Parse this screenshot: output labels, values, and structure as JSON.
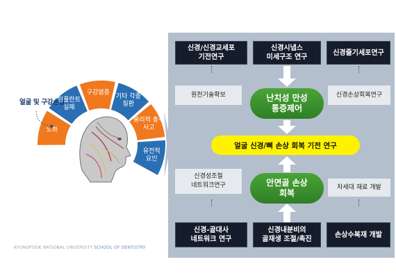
{
  "left_diagram": {
    "caption": "얼굴 및 구강손상",
    "segments": [
      {
        "label": "노화",
        "color": "#f0781e"
      },
      {
        "label": "임플란트\n실패",
        "color": "#2a6fb3"
      },
      {
        "label": "구강염증",
        "color": "#f0781e"
      },
      {
        "label": "기타 각종\n질환",
        "color": "#2a6fb3"
      },
      {
        "label": "물리적 충격\n사고",
        "color": "#f0781e"
      },
      {
        "label": "유전적\n요인",
        "color": "#2a6fb3"
      }
    ],
    "credit_prefix": "KYUNGPOOK NATIONAL UNIVERSITY",
    "credit_suffix": "SCHOOL OF DENTISTRY"
  },
  "right_panel": {
    "top_boxes": [
      "신경/신경교세포\n기전연구",
      "신경시냅스\n미세구조 연구",
      "신경줄기세포연구"
    ],
    "top_notes": [
      "원천기술확보",
      "신경손상회복연구"
    ],
    "upper_goal": "난치성 만성\n통증제어",
    "center_goal": "얼굴 신경/뼈 손상 회복 기전 연구",
    "lower_goal": "안면골 손상\n회복",
    "bottom_notes": [
      "신경성조절\n네트워크연구",
      "차세대 재료 개발"
    ],
    "bottom_boxes": [
      "신경-골대사\n네트워크 연구",
      "신경내분비의\n골재생 조절/촉진",
      "손상수복재 개발"
    ]
  },
  "colors": {
    "orange": "#f0781e",
    "blue": "#2a6fb3",
    "panel_bg": "#b3bfcc",
    "dark_box": "#151c2b",
    "green": "#3a9a2e",
    "yellow": "#fff200"
  }
}
